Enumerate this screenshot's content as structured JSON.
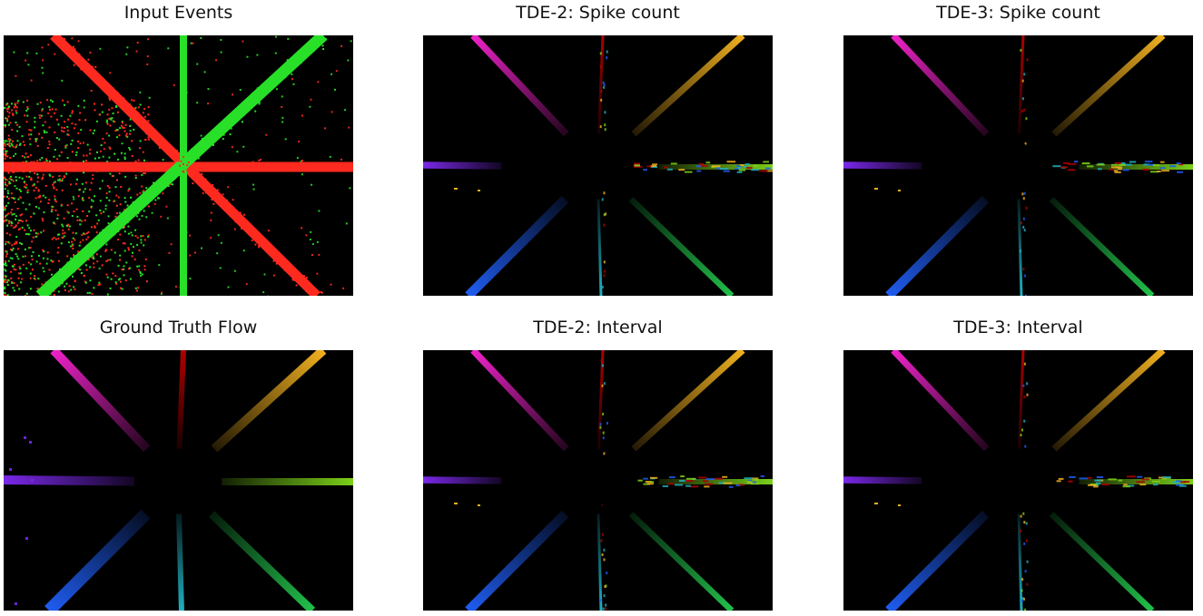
{
  "panels": [
    {
      "title": "Input Events",
      "kind": "events"
    },
    {
      "title": "TDE-2: Spike count",
      "kind": "flow-sparse"
    },
    {
      "title": "TDE-3: Spike count",
      "kind": "flow-sparse"
    },
    {
      "title": "Ground Truth Flow",
      "kind": "flow-dense"
    },
    {
      "title": "TDE-2: Interval",
      "kind": "flow-sparse"
    },
    {
      "title": "TDE-3: Interval",
      "kind": "flow-sparse"
    }
  ],
  "colors": {
    "on_events": "#ff2a1f",
    "off_events": "#28e028",
    "flow_up": "#b00000",
    "flow_up_right": "#f0b020",
    "flow_right": "#7bd11a",
    "flow_down_right": "#22c04a",
    "flow_down": "#20b0c0",
    "flow_down_left": "#1f5cf0",
    "flow_left": "#7a28e8",
    "flow_up_left": "#ee22c8"
  }
}
